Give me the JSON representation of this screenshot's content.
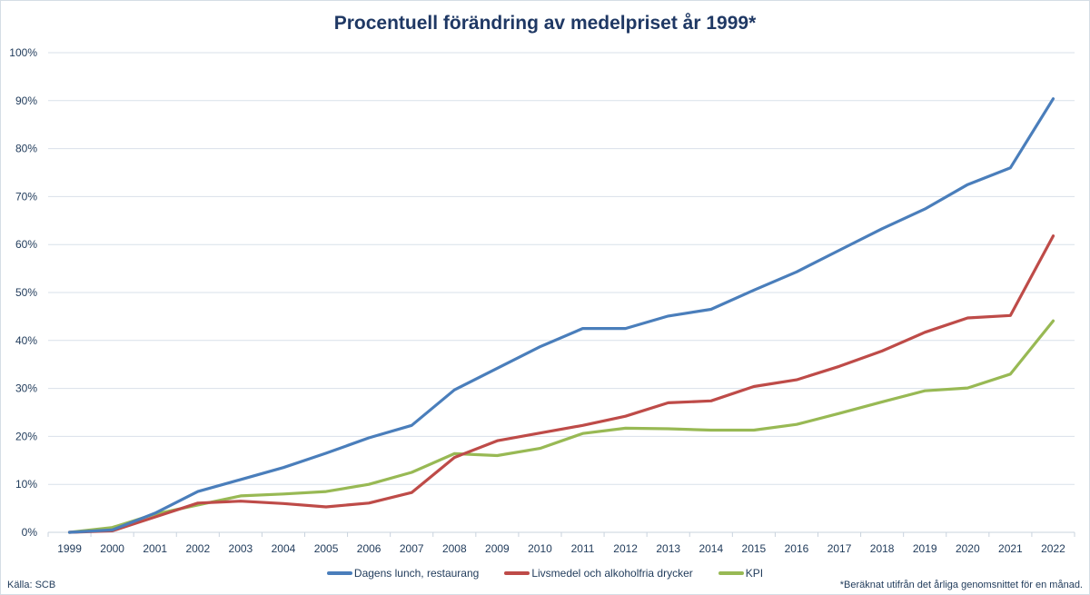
{
  "chart_data": {
    "type": "line",
    "title": "Procentuell förändring av medelpriset år 1999*",
    "xlabel": "",
    "ylabel": "",
    "ylim": [
      0,
      100
    ],
    "yticks": [
      "0%",
      "10%",
      "20%",
      "30%",
      "40%",
      "50%",
      "60%",
      "70%",
      "80%",
      "90%",
      "100%"
    ],
    "grid": true,
    "legend_position": "bottom",
    "x": [
      "1999",
      "2000",
      "2001",
      "2002",
      "2003",
      "2004",
      "2005",
      "2006",
      "2007",
      "2008",
      "2009",
      "2010",
      "2011",
      "2012",
      "2013",
      "2014",
      "2015",
      "2016",
      "2017",
      "2018",
      "2019",
      "2020",
      "2021",
      "2022"
    ],
    "series": [
      {
        "name": "Dagens lunch, restaurang",
        "color": "#4a7ebb",
        "values": [
          0,
          0.5,
          4,
          8.5,
          11,
          13.5,
          16.5,
          19.7,
          22.3,
          29.7,
          34.2,
          38.7,
          42.5,
          42.5,
          45.1,
          46.5,
          50.5,
          54.3,
          58.8,
          63.3,
          67.4,
          72.5,
          76,
          90.4
        ]
      },
      {
        "name": "Livsmedel och alkoholfria drycker",
        "color": "#be4b48",
        "values": [
          0,
          0.3,
          3.2,
          6.1,
          6.5,
          6,
          5.3,
          6.1,
          8.3,
          15.6,
          19.1,
          20.7,
          22.3,
          24.2,
          27,
          27.4,
          30.4,
          31.8,
          34.6,
          37.8,
          41.7,
          44.7,
          45.2,
          61.8
        ]
      },
      {
        "name": "KPI",
        "color": "#98b954",
        "values": [
          0,
          1,
          3.8,
          5.7,
          7.6,
          8,
          8.5,
          10,
          12.5,
          16.4,
          16,
          17.5,
          20.6,
          21.7,
          21.6,
          21.3,
          21.3,
          22.5,
          24.8,
          27.2,
          29.5,
          30.1,
          33,
          44.1
        ]
      }
    ]
  },
  "source": "Källa: SCB",
  "footnote": "*Beräknat utifrån det årliga genomsnittet för en månad."
}
